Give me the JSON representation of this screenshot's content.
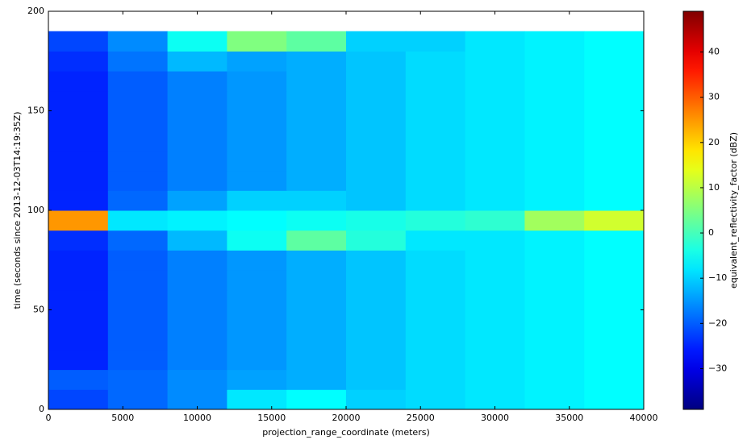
{
  "chart_data": {
    "type": "heatmap",
    "xlabel": "projection_range_coordinate (meters)",
    "ylabel": "time (seconds since 2013-12-03T14:19:35Z)",
    "colorbar_label": "equivalent_reflectivity_factor (dBZ)",
    "colormap": "jet",
    "xlim": [
      0,
      40000
    ],
    "xticks": [
      0,
      5000,
      10000,
      15000,
      20000,
      25000,
      30000,
      35000,
      40000
    ],
    "ylim": [
      0,
      200
    ],
    "yticks": [
      0,
      50,
      100,
      150,
      200
    ],
    "clim": [
      -39,
      49
    ],
    "cticks": [
      {
        "value": -30,
        "label": "−30"
      },
      {
        "value": -20,
        "label": "−20"
      },
      {
        "value": -10,
        "label": "−10"
      },
      0,
      10,
      20,
      30,
      40
    ],
    "x_bins": [
      0,
      4000,
      8000,
      12000,
      16000,
      20000,
      24000,
      28000,
      32000,
      36000,
      40000
    ],
    "y_bins": [
      0,
      10,
      20,
      30,
      40,
      50,
      60,
      70,
      80,
      90,
      100,
      110,
      120,
      130,
      140,
      150,
      160,
      170,
      180,
      190
    ],
    "z": [
      [
        -22,
        -19,
        -16,
        -8,
        -6,
        -10,
        -9,
        -8,
        -7,
        -6
      ],
      [
        -20,
        -19,
        -16,
        -14,
        -13,
        -11,
        -9,
        -8,
        -7,
        -6
      ],
      [
        -25,
        -20,
        -17,
        -15,
        -13,
        -11,
        -9,
        -8,
        -7,
        -6
      ],
      [
        -25,
        -20,
        -17,
        -15,
        -13,
        -11,
        -9,
        -8,
        -7,
        -6
      ],
      [
        -25,
        -20,
        -17,
        -15,
        -13,
        -11,
        -9,
        -8,
        -7,
        -6
      ],
      [
        -25,
        -20,
        -17,
        -15,
        -13,
        -11,
        -9,
        -8,
        -7,
        -6
      ],
      [
        -25,
        -20,
        -17,
        -15,
        -13,
        -11,
        -9,
        -8,
        -7,
        -6
      ],
      [
        -25,
        -20,
        -17,
        -15,
        -13,
        -11,
        -9,
        -8,
        -7,
        -6
      ],
      [
        -24,
        -19,
        -12,
        -5,
        2,
        -3,
        -8,
        -8,
        -7,
        -6
      ],
      [
        25,
        -8,
        -7,
        -6,
        -5,
        -4,
        -3,
        -2,
        8,
        12
      ],
      [
        -25,
        -19,
        -14,
        -10,
        -10,
        -11,
        -9,
        -8,
        -7,
        -6
      ],
      [
        -25,
        -20,
        -17,
        -15,
        -13,
        -11,
        -9,
        -8,
        -7,
        -6
      ],
      [
        -25,
        -20,
        -17,
        -15,
        -13,
        -11,
        -9,
        -8,
        -7,
        -6
      ],
      [
        -25,
        -20,
        -17,
        -15,
        -13,
        -11,
        -9,
        -8,
        -7,
        -6
      ],
      [
        -25,
        -20,
        -17,
        -15,
        -13,
        -11,
        -9,
        -8,
        -7,
        -6
      ],
      [
        -25,
        -20,
        -17,
        -15,
        -13,
        -11,
        -9,
        -8,
        -7,
        -6
      ],
      [
        -25,
        -20,
        -17,
        -15,
        -13,
        -11,
        -9,
        -8,
        -7,
        -6
      ],
      [
        -24,
        -18,
        -12,
        -14,
        -13,
        -11,
        -9,
        -8,
        -7,
        -6
      ],
      [
        -22,
        -16,
        -5,
        5,
        2,
        -10,
        -10,
        -8,
        -7,
        -6
      ]
    ]
  }
}
